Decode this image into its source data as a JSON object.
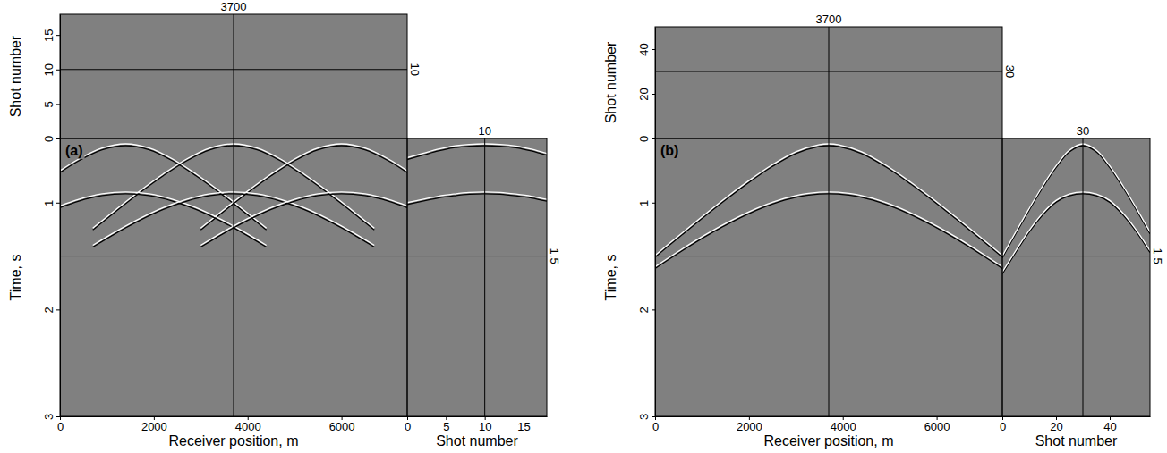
{
  "chart_data": [
    {
      "type": "cube",
      "title": "(a)",
      "top": {
        "ylabel": "Shot number",
        "ylim": [
          0,
          18
        ],
        "yticks": [
          0,
          5,
          10,
          15
        ],
        "crosshair": 10
      },
      "main": {
        "xlabel": "Receiver position, m",
        "ylabel": "Time, s",
        "xlim": [
          0,
          7400
        ],
        "xticks": [
          0,
          2000,
          4000,
          6000
        ],
        "ylim": [
          0.4,
          3
        ],
        "yticks": [
          1,
          2,
          3
        ],
        "crosshair_x": 3700,
        "crosshair_y": 1.5,
        "events": [
          {
            "x": [
              0,
              400,
              900,
              1400,
              1900,
              2400,
              2900,
              3400,
              3900,
              4400
            ],
            "values": [
              0.702,
              0.592,
              0.489,
              0.45,
              0.489,
              0.592,
              0.732,
              0.891,
              1.062,
              1.239
            ]
          },
          {
            "x": [
              700,
              1200,
              1700,
              2200,
              2700,
              3200,
              3700,
              4200,
              4700,
              5200,
              5700,
              6200,
              6700
            ],
            "values": [
              1.239,
              1.062,
              0.891,
              0.732,
              0.592,
              0.489,
              0.45,
              0.489,
              0.592,
              0.732,
              0.891,
              1.062,
              1.239
            ]
          },
          {
            "x": [
              3000,
              3500,
              4000,
              4500,
              5000,
              5500,
              6000,
              6500,
              7000,
              7400
            ],
            "values": [
              1.239,
              1.062,
              0.891,
              0.732,
              0.592,
              0.489,
              0.45,
              0.489,
              0.592,
              0.702
            ]
          },
          {
            "x": [
              0,
              400,
              900,
              1400,
              1900,
              2400,
              2900,
              3400,
              3900,
              4400
            ],
            "values": [
              1.03,
              0.969,
              0.918,
              0.9,
              0.918,
              0.969,
              1.047,
              1.149,
              1.268,
              1.399
            ]
          },
          {
            "x": [
              700,
              1200,
              1700,
              2200,
              2700,
              3200,
              3700,
              4200,
              4700,
              5200,
              5700,
              6200,
              6700
            ],
            "values": [
              1.399,
              1.268,
              1.149,
              1.047,
              0.969,
              0.918,
              0.9,
              0.918,
              0.969,
              1.047,
              1.149,
              1.268,
              1.399
            ]
          },
          {
            "x": [
              3000,
              3500,
              4000,
              4500,
              5000,
              5500,
              6000,
              6500,
              7000,
              7400
            ],
            "values": [
              1.399,
              1.268,
              1.149,
              1.047,
              0.969,
              0.918,
              0.9,
              0.918,
              0.969,
              1.03
            ]
          }
        ]
      },
      "side": {
        "xlabel": "Shot number",
        "xlim": [
          0,
          18
        ],
        "xticks": [
          0,
          5,
          10,
          15
        ],
        "crosshair": 10,
        "events": [
          {
            "x": [
              0,
              2,
              4,
              6,
              8,
              10,
              12,
              14,
              16,
              18
            ],
            "values": [
              0.58,
              0.54,
              0.5,
              0.47,
              0.455,
              0.45,
              0.455,
              0.47,
              0.5,
              0.54
            ]
          },
          {
            "x": [
              0,
              2,
              4,
              6,
              8,
              10,
              12,
              14,
              16,
              18
            ],
            "values": [
              1.0,
              0.97,
              0.94,
              0.92,
              0.905,
              0.9,
              0.905,
              0.92,
              0.94,
              0.97
            ]
          }
        ]
      }
    },
    {
      "type": "cube",
      "title": "(b)",
      "top": {
        "ylabel": "Shot number",
        "ylim": [
          0,
          50
        ],
        "yticks": [
          0,
          20,
          40
        ],
        "crosshair": 30
      },
      "main": {
        "xlabel": "Receiver position, m",
        "ylabel": "Time, s",
        "xlim": [
          0,
          7400
        ],
        "xticks": [
          0,
          2000,
          4000,
          6000
        ],
        "ylim": [
          0.4,
          3
        ],
        "yticks": [
          1,
          2,
          3
        ],
        "crosshair_x": 3700,
        "crosshair_y": 1.5,
        "events": [
          {
            "x": [
              0,
              500,
              1000,
              1500,
              2000,
              2500,
              3000,
              3500,
              3700,
              3900,
              4400,
              4900,
              5400,
              5900,
              6400,
              6900,
              7400
            ],
            "values": [
              1.493,
              1.311,
              1.132,
              0.958,
              0.794,
              0.645,
              0.524,
              0.457,
              0.45,
              0.457,
              0.524,
              0.645,
              0.794,
              0.958,
              1.132,
              1.311,
              1.493
            ]
          },
          {
            "x": [
              0,
              500,
              1000,
              1500,
              2000,
              2500,
              3000,
              3500,
              3700,
              3900,
              4400,
              4900,
              5400,
              5900,
              6400,
              6900,
              7400
            ],
            "values": [
              1.599,
              1.455,
              1.319,
              1.195,
              1.086,
              0.997,
              0.934,
              0.903,
              0.9,
              0.903,
              0.934,
              0.997,
              1.086,
              1.195,
              1.319,
              1.455,
              1.599
            ]
          }
        ]
      },
      "side": {
        "xlabel": "Shot number",
        "xlim": [
          0,
          55
        ],
        "xticks": [
          0,
          20,
          40
        ],
        "crosshair": 30,
        "events": [
          {
            "x": [
              0,
              5,
              10,
              15,
              20,
              25,
              30,
              35,
              40,
              45,
              50,
              55
            ],
            "values": [
              1.5,
              1.275,
              1.055,
              0.845,
              0.656,
              0.509,
              0.45,
              0.509,
              0.656,
              0.845,
              1.055,
              1.275
            ]
          },
          {
            "x": [
              0,
              5,
              10,
              15,
              20,
              25,
              30,
              35,
              40,
              45,
              50,
              55
            ],
            "values": [
              1.65,
              1.45,
              1.26,
              1.1,
              0.98,
              0.92,
              0.9,
              0.92,
              0.98,
              1.1,
              1.26,
              1.45
            ]
          }
        ]
      }
    }
  ]
}
